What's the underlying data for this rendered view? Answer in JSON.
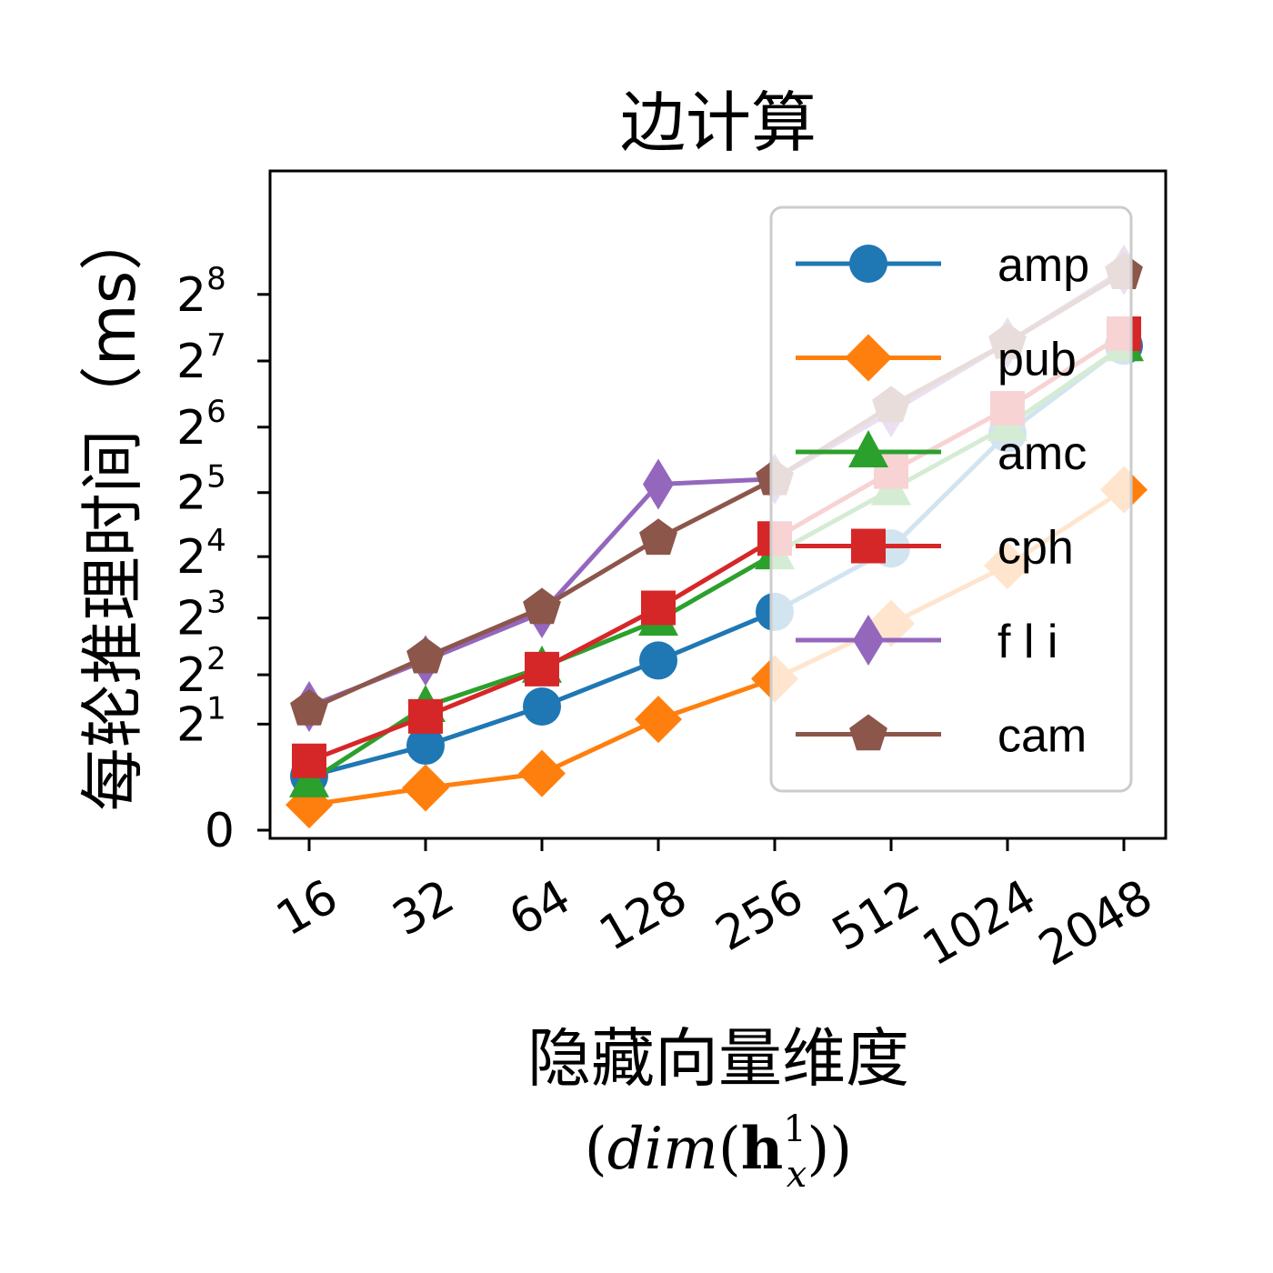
{
  "chart_data": {
    "type": "line",
    "title": "边计算",
    "xlabel": "隐藏向量维度",
    "xlabel_math": {
      "open": "(",
      "func": "dim",
      "paren_open": "(",
      "bold": "h",
      "sup": "1",
      "sub": "x",
      "close": "))"
    },
    "ylabel": "每轮推理时间（ms）",
    "yscale": "log2(1+y)",
    "categories": [
      "16",
      "32",
      "64",
      "128",
      "256",
      "512",
      "1024",
      "2048"
    ],
    "y_ticks": [
      {
        "value": 0,
        "label": "0",
        "exp": ""
      },
      {
        "value": 2,
        "label": "2",
        "exp": "1"
      },
      {
        "value": 4,
        "label": "2",
        "exp": "2"
      },
      {
        "value": 8,
        "label": "2",
        "exp": "3"
      },
      {
        "value": 16,
        "label": "2",
        "exp": "4"
      },
      {
        "value": 32,
        "label": "2",
        "exp": "5"
      },
      {
        "value": 64,
        "label": "2",
        "exp": "6"
      },
      {
        "value": 128,
        "label": "2",
        "exp": "7"
      },
      {
        "value": 256,
        "label": "2",
        "exp": "8"
      }
    ],
    "grid": false,
    "legend_position": "top-right",
    "series": [
      {
        "name": "amp",
        "color": "#1f77b4",
        "marker": "circle",
        "values": [
          0.75,
          1.4,
          2.6,
          4.8,
          8.6,
          17.5,
          60,
          150
        ]
      },
      {
        "name": "pub",
        "color": "#ff7f0e",
        "marker": "diamond",
        "values": [
          0.3,
          0.55,
          0.8,
          2.15,
          3.8,
          7.5,
          14.5,
          33
        ]
      },
      {
        "name": "amc",
        "color": "#2ca02c",
        "marker": "triangle",
        "values": [
          0.65,
          2.6,
          4.4,
          7.8,
          16.5,
          33,
          65,
          150
        ]
      },
      {
        "name": "cph",
        "color": "#d62728",
        "marker": "square",
        "values": [
          1.05,
          2.25,
          4.3,
          9.0,
          19.5,
          40,
          78,
          170
        ]
      },
      {
        "name": "f l i",
        "color": "#9467bd",
        "marker": "thin-diamond",
        "values": [
          2.6,
          4.8,
          8.5,
          35,
          37,
          75,
          155,
          330
        ]
      },
      {
        "name": "cam",
        "color": "#8c564b",
        "marker": "pentagon",
        "values": [
          2.5,
          5.0,
          9.0,
          19.5,
          37,
          80,
          155,
          320
        ]
      }
    ]
  }
}
